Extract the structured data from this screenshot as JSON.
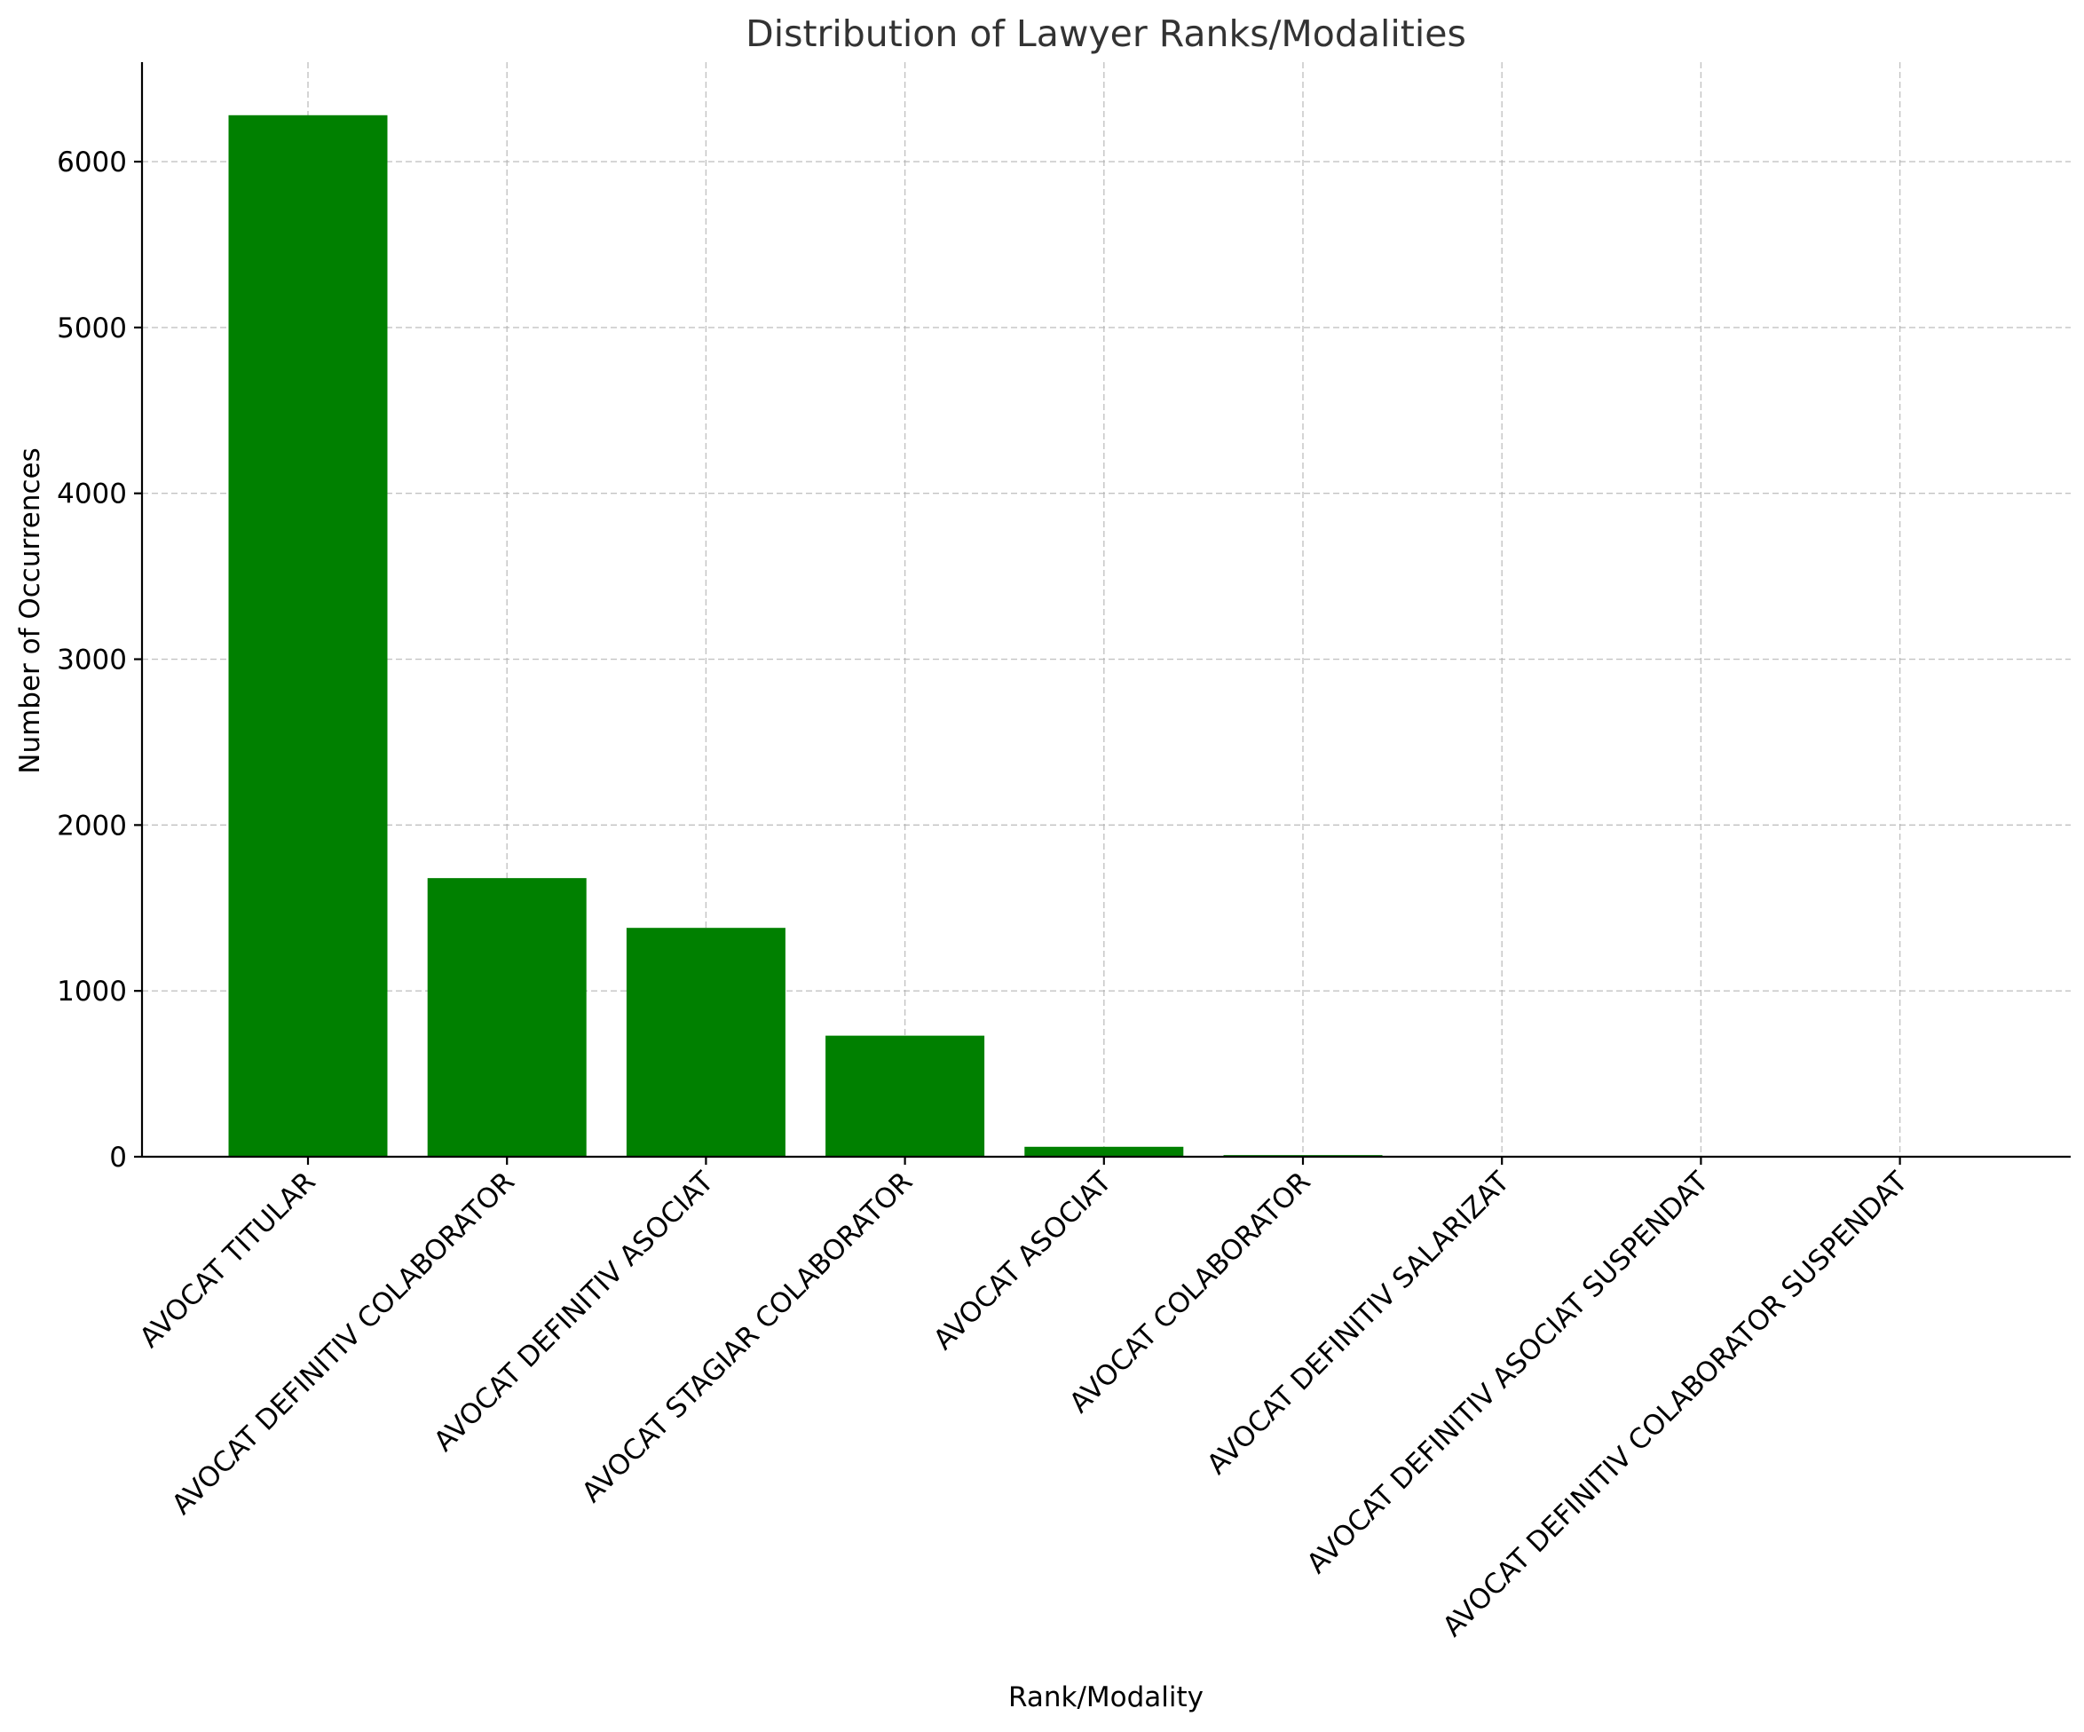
{
  "chart_data": {
    "type": "bar",
    "title": "Distribution of Lawyer Ranks/Modalities",
    "xlabel": "Rank/Modality",
    "ylabel": "Number of Occurrences",
    "categories": [
      "AVOCAT TITULAR",
      "AVOCAT DEFINITIV COLABORATOR",
      "AVOCAT DEFINITIV ASOCIAT",
      "AVOCAT STAGIAR COLABORATOR",
      "AVOCAT ASOCIAT",
      "AVOCAT COLABORATOR",
      "AVOCAT DEFINITIV SALARIZAT",
      "AVOCAT DEFINITIV ASOCIAT SUSPENDAT",
      "AVOCAT DEFINITIV COLABORATOR SUSPENDAT"
    ],
    "values": [
      6280,
      1680,
      1380,
      730,
      60,
      10,
      2,
      1,
      1
    ],
    "ylim": [
      0,
      6600
    ],
    "yticks": [
      0,
      1000,
      2000,
      3000,
      4000,
      5000,
      6000
    ],
    "grid": true,
    "bar_color": "#008000"
  }
}
